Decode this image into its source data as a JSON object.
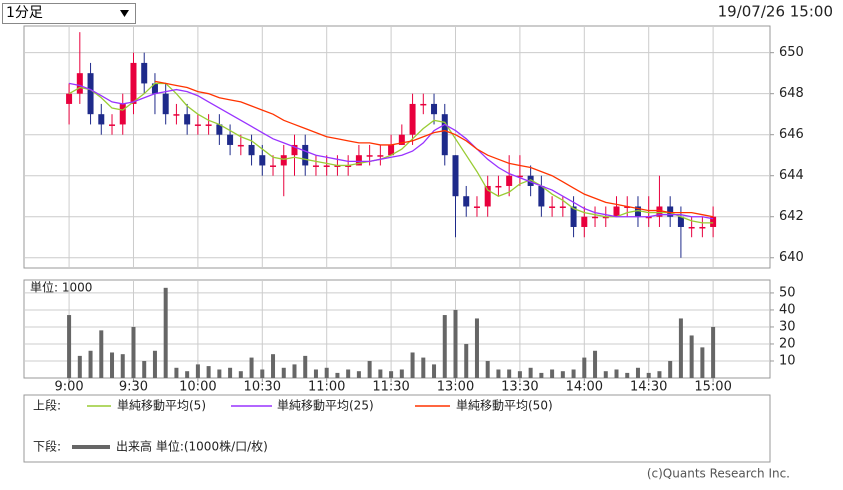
{
  "controls": {
    "period": "1分足"
  },
  "timestamp": "19/07/26 15:00",
  "legend": {
    "upper_label": "上段:",
    "lower_label": "下段:"
  },
  "footer": "(c)Quants Research Inc.",
  "chart_data": [
    {
      "type": "candlestick",
      "up_color": "#e8003d",
      "down_color": "#1e2a8a",
      "x": [
        0,
        5,
        10,
        15,
        20,
        25,
        30,
        35,
        40,
        45,
        50,
        55,
        60,
        65,
        70,
        75,
        80,
        85,
        90,
        95,
        100,
        105,
        110,
        115,
        120,
        125,
        130,
        135,
        140,
        145,
        150,
        155,
        160,
        165,
        170,
        175,
        180,
        185,
        190,
        195,
        200,
        205,
        210,
        215,
        220,
        225,
        230,
        235,
        240,
        245,
        250,
        255,
        260,
        265,
        270,
        275,
        280,
        285,
        290,
        295,
        300
      ],
      "open": [
        647.5,
        648,
        649,
        647,
        646.5,
        646.5,
        647.5,
        649.5,
        648.5,
        648,
        647,
        647,
        646.5,
        646.5,
        646.5,
        646,
        645.5,
        645.5,
        645,
        644.5,
        644.5,
        645,
        645.5,
        644.5,
        644.5,
        644.5,
        644.5,
        644.5,
        645,
        645,
        645,
        645.5,
        646,
        647.5,
        647.5,
        647,
        645,
        643,
        642.5,
        642.5,
        643.5,
        643.5,
        644,
        644,
        643.5,
        642.5,
        642.5,
        642.5,
        641.5,
        642,
        642,
        642,
        642.5,
        642.5,
        642,
        642,
        642.5,
        642,
        641.5,
        641.5,
        641.5
      ],
      "high": [
        648.5,
        651,
        649.5,
        647.5,
        647,
        648,
        650,
        650,
        649,
        648.5,
        647.5,
        647.5,
        647,
        647,
        647,
        646.5,
        646,
        646,
        645.5,
        645,
        645.5,
        646,
        646,
        645,
        645,
        645,
        645,
        645.5,
        645.5,
        645.5,
        646,
        646.5,
        648,
        648,
        648,
        647.5,
        645,
        643.5,
        643,
        644,
        644,
        645,
        645,
        644.5,
        644,
        643,
        643,
        643,
        642.5,
        642.5,
        642.5,
        643,
        643,
        643,
        643,
        644,
        643,
        642.5,
        642,
        642,
        642.5
      ],
      "low": [
        646.5,
        647.5,
        646.5,
        646,
        646,
        646,
        647,
        648,
        647,
        646.5,
        646.5,
        646,
        646,
        646,
        645.5,
        645,
        645,
        644.5,
        644,
        644,
        643,
        644,
        644,
        644,
        644,
        644,
        644,
        644.5,
        644.5,
        644.5,
        645,
        645.5,
        645.5,
        647,
        646.5,
        644.5,
        641,
        642,
        642,
        642,
        643,
        643,
        643.5,
        643,
        642,
        642,
        642,
        641,
        641,
        641.5,
        641.5,
        642,
        642,
        641.5,
        641.5,
        641.5,
        641.5,
        640,
        641,
        641,
        641
      ],
      "close": [
        648,
        649,
        647,
        646.5,
        646.5,
        647.5,
        649.5,
        648.5,
        648,
        647,
        647,
        646.5,
        646.5,
        646.5,
        646,
        645.5,
        645.5,
        645,
        644.5,
        644.5,
        645,
        645.5,
        644.5,
        644.5,
        644.5,
        644.5,
        644.5,
        645,
        645,
        645,
        645.5,
        646,
        647.5,
        647.5,
        647,
        645,
        643,
        642.5,
        642.5,
        643.5,
        643.5,
        644,
        644,
        643.5,
        642.5,
        642.5,
        642.5,
        641.5,
        642,
        642,
        642,
        642.5,
        642.5,
        642,
        642,
        642.5,
        642,
        641.5,
        641.5,
        641.5,
        642
      ],
      "series": [
        {
          "name": "単純移動平均(5)",
          "color": "#99cc33",
          "values": [
            648,
            648.3,
            648.2,
            647.8,
            647.3,
            647.2,
            647.6,
            648.0,
            648.5,
            648.5,
            648.0,
            647.4,
            647.0,
            646.7,
            646.5,
            646.2,
            645.9,
            645.7,
            645.3,
            644.9,
            644.8,
            644.9,
            644.8,
            644.7,
            644.6,
            644.5,
            644.5,
            644.6,
            644.7,
            644.8,
            645.0,
            645.3,
            645.8,
            646.3,
            646.7,
            646.6,
            645.8,
            645.0,
            644.2,
            643.3,
            643.0,
            643.2,
            643.6,
            643.8,
            643.5,
            643.1,
            642.8,
            642.4,
            642.2,
            642.1,
            642.0,
            642.0,
            642.2,
            642.3,
            642.2,
            642.2,
            642.2,
            642.0,
            641.8,
            641.7,
            641.7
          ]
        },
        {
          "name": "単純移動平均(25)",
          "color": "#9933ff",
          "values": [
            648.5,
            648.4,
            648.2,
            647.9,
            647.6,
            647.5,
            647.6,
            647.8,
            648.0,
            648.1,
            648.2,
            648.1,
            647.9,
            647.6,
            647.3,
            647.0,
            646.7,
            646.4,
            646.1,
            645.8,
            645.6,
            645.4,
            645.2,
            645.0,
            644.9,
            644.8,
            644.7,
            644.7,
            644.7,
            644.8,
            644.9,
            645.0,
            645.2,
            645.6,
            646.2,
            646.5,
            646.2,
            645.8,
            645.3,
            644.8,
            644.4,
            644.1,
            643.9,
            643.7,
            643.5,
            643.3,
            643.0,
            642.7,
            642.4,
            642.2,
            642.1,
            642.0,
            642.0,
            642.0,
            642.0,
            642.1,
            642.1,
            642.1,
            642.0,
            642.0,
            641.9
          ]
        },
        {
          "name": "単純移動平均(50)",
          "color": "#ff3300",
          "values": [
            null,
            null,
            null,
            null,
            null,
            null,
            null,
            null,
            648.6,
            648.5,
            648.4,
            648.3,
            648.1,
            648.0,
            647.8,
            647.7,
            647.6,
            647.4,
            647.2,
            647.0,
            646.7,
            646.5,
            646.3,
            646.1,
            645.9,
            645.8,
            645.7,
            645.6,
            645.6,
            645.5,
            645.5,
            645.6,
            645.7,
            645.9,
            646.1,
            646.2,
            646.0,
            645.7,
            645.3,
            645.0,
            644.8,
            644.6,
            644.5,
            644.4,
            644.2,
            644.0,
            643.7,
            643.4,
            643.1,
            642.9,
            642.7,
            642.6,
            642.5,
            642.4,
            642.3,
            642.3,
            642.2,
            642.2,
            642.2,
            642.1,
            642.0
          ]
        }
      ],
      "xlim": [
        -21,
        326.5
      ],
      "xticks": [
        {
          "value": 0,
          "label": "9:00"
        },
        {
          "value": 30,
          "label": "9:30"
        },
        {
          "value": 60,
          "label": "10:00"
        },
        {
          "value": 90,
          "label": "10:30"
        },
        {
          "value": 120,
          "label": "11:00"
        },
        {
          "value": 150,
          "label": "11:30"
        },
        {
          "value": 180,
          "label": "13:00"
        },
        {
          "value": 210,
          "label": "13:30"
        },
        {
          "value": 240,
          "label": "14:00"
        },
        {
          "value": 270,
          "label": "14:30"
        },
        {
          "value": 300,
          "label": "15:00"
        }
      ],
      "ylim": [
        639.5,
        651.3
      ],
      "yticks": [
        640,
        642,
        644,
        646,
        648,
        650
      ],
      "grid": true
    },
    {
      "type": "bar",
      "axis_title": "単位: 1000",
      "series": [
        {
          "name": "出来高 単位:(1000株/口/枚)",
          "color": "#666666",
          "values": [
            37,
            13,
            16,
            28,
            15,
            14,
            30,
            10,
            16,
            53,
            6,
            4,
            8,
            7,
            5,
            6,
            4,
            12,
            5,
            14,
            6,
            8,
            13,
            5,
            6,
            3,
            5,
            4,
            10,
            5,
            4,
            5,
            15,
            12,
            8,
            37,
            40,
            20,
            35,
            10,
            5,
            5,
            4,
            6,
            3,
            5,
            4,
            5,
            12,
            16,
            4,
            5,
            3,
            6,
            3,
            4,
            10,
            35,
            25,
            18,
            30
          ]
        }
      ],
      "ylim": [
        0,
        57.6
      ],
      "yticks": [
        10,
        20,
        30,
        40,
        50
      ],
      "grid": true
    }
  ]
}
